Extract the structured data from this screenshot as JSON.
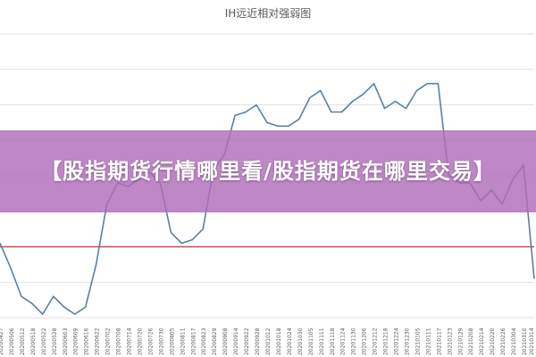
{
  "banner": {
    "text": "【股指期货行情哪里看/股指期货在哪里交易】"
  },
  "colors": {
    "series": "#5b7fa8",
    "threshold": "#c0504d",
    "banner": "#b06cba",
    "grid": "#d9d9d9"
  },
  "chart_data": {
    "type": "line",
    "title": "IH远近相对强弱图",
    "xlabel": "",
    "ylabel": "",
    "grid": true,
    "legend": "none",
    "ylim": [
      0,
      8
    ],
    "threshold": 2,
    "categories": [
      "20200427",
      "20200506",
      "20200512",
      "20200518",
      "20200522",
      "20200528",
      "20200603",
      "20200609",
      "20200616",
      "20200622",
      "20200702",
      "20200708",
      "20200714",
      "20200720",
      "20200726",
      "20200730",
      "20200805",
      "20200811",
      "20200817",
      "20200823",
      "20200829",
      "20200908",
      "20200914",
      "20200922",
      "20200928",
      "20201012",
      "20201018",
      "20201024",
      "20201030",
      "20201105",
      "20201111",
      "20201118",
      "20201124",
      "20201130",
      "20201206",
      "20201212",
      "20201218",
      "20201224",
      "20201230",
      "20210105",
      "20210111",
      "20210117",
      "20210123",
      "20210129",
      "20210208",
      "20210214",
      "20210220",
      "20210226",
      "20210304",
      "20210310",
      "20210314"
    ],
    "values": [
      2.1,
      1.4,
      0.6,
      0.4,
      0.1,
      0.6,
      0.3,
      0.1,
      0.3,
      1.5,
      3.2,
      3.8,
      3.7,
      3.9,
      4.1,
      3.8,
      2.4,
      2.1,
      2.2,
      2.5,
      4.2,
      4.6,
      5.7,
      5.8,
      6.0,
      5.5,
      5.4,
      5.4,
      5.6,
      6.2,
      6.4,
      5.8,
      5.8,
      6.1,
      6.3,
      6.6,
      5.9,
      6.1,
      5.9,
      6.4,
      6.6,
      6.6,
      4.0,
      3.8,
      3.8,
      3.3,
      3.6,
      3.2,
      3.9,
      4.3,
      1.1
    ]
  }
}
